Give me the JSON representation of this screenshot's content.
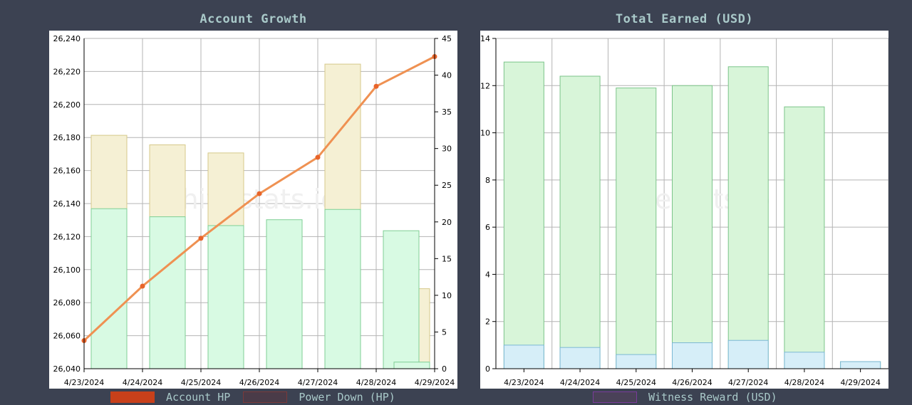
{
  "charts": {
    "left_title": "Account Growth",
    "right_title": "Total Earned (USD)",
    "watermark": "hivestats.io"
  },
  "legend": {
    "left": [
      {
        "label": "Account HP",
        "color": "#c8401a",
        "border": "#c8401a"
      },
      {
        "label": "Power Down (HP)",
        "color": "#4a3b48",
        "border": "#7a3a3a"
      }
    ],
    "right": [
      {
        "label": "Witness Reward (USD)",
        "color": "#4a4158",
        "border": "#7a3b9a"
      }
    ]
  },
  "chart_data": [
    {
      "type": "bar",
      "title": "Account Growth",
      "categories": [
        "4/23/2024",
        "4/24/2024",
        "4/25/2024",
        "4/26/2024",
        "4/27/2024",
        "4/28/2024",
        "4/29/2024"
      ],
      "left_axis": {
        "min": 26040,
        "max": 26240,
        "ticks": [
          "26,040",
          "26,060",
          "26,080",
          "26,100",
          "26,120",
          "26,140",
          "26,160",
          "26,180",
          "26,200",
          "26,220",
          "26,240"
        ]
      },
      "right_axis": {
        "min": 0,
        "max": 45,
        "ticks": [
          "0",
          "5",
          "10",
          "15",
          "20",
          "25",
          "30",
          "35",
          "40",
          "45"
        ]
      },
      "series": [
        {
          "kind": "bar",
          "axis": "right",
          "color": "#f5f0d4",
          "stroke": "#d6c98a",
          "values": [
            31.8,
            30.5,
            29.4,
            null,
            41.5,
            null,
            10.9
          ]
        },
        {
          "kind": "bar",
          "axis": "right",
          "color": "#d8fae3",
          "stroke": "#7fcf95",
          "values": [
            21.8,
            20.7,
            19.5,
            20.3,
            21.7,
            18.8,
            0.9
          ]
        },
        {
          "name": "Account HP",
          "kind": "line",
          "axis": "left",
          "color": "#ef9152",
          "point": "#e8642a",
          "values": [
            26057,
            26090,
            26119,
            26146,
            26168,
            26211,
            26229
          ]
        }
      ],
      "grid": true
    },
    {
      "type": "bar",
      "title": "Total Earned (USD)",
      "categories": [
        "4/23/2024",
        "4/24/2024",
        "4/25/2024",
        "4/26/2024",
        "4/27/2024",
        "4/28/2024",
        "4/29/2024"
      ],
      "ylim": [
        0,
        14
      ],
      "yticks": [
        "0",
        "2",
        "4",
        "6",
        "8",
        "10",
        "12",
        "14"
      ],
      "series": [
        {
          "kind": "bar",
          "color": "#d8f5d9",
          "stroke": "#7cc48a",
          "values": [
            13.0,
            12.4,
            11.9,
            12.0,
            12.8,
            11.1,
            0.3
          ]
        },
        {
          "name": "Witness Reward (USD)",
          "kind": "bar",
          "color": "#d6eef8",
          "stroke": "#7cb8d4",
          "values": [
            1.0,
            0.9,
            0.6,
            1.1,
            1.2,
            0.7,
            0.3
          ]
        }
      ],
      "grid": true
    }
  ]
}
